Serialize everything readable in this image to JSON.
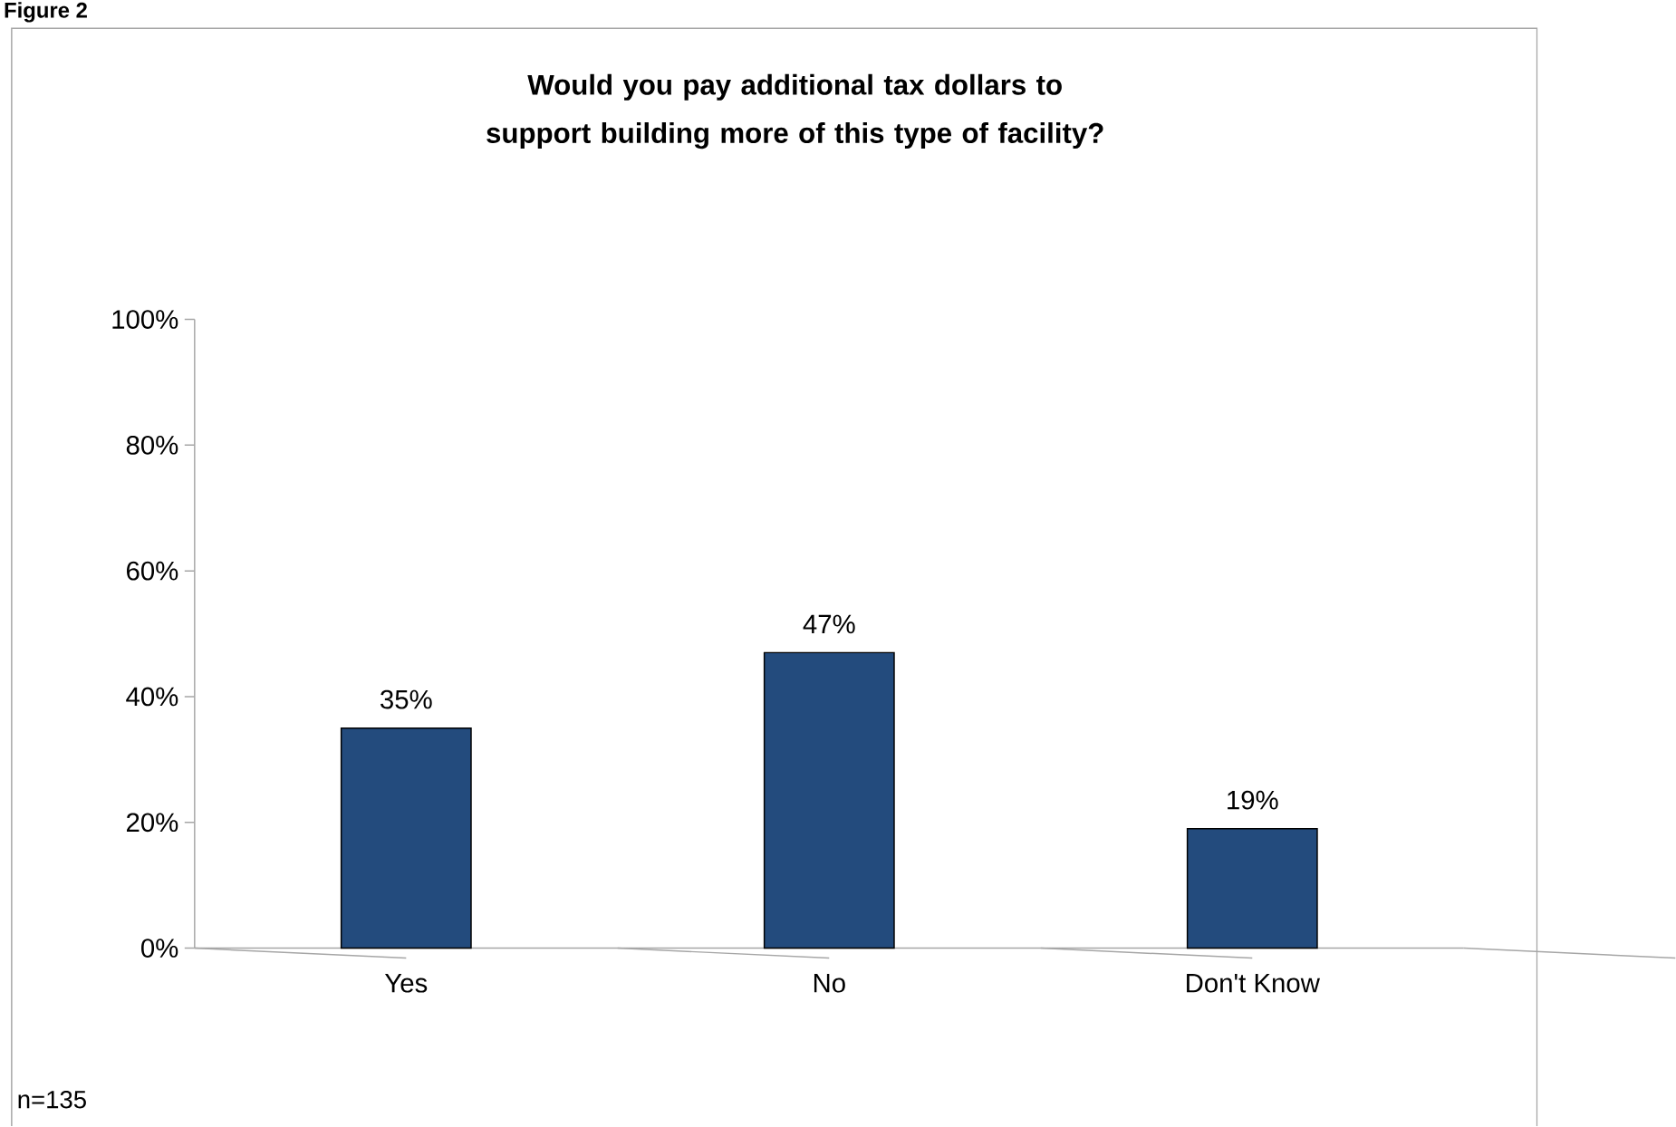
{
  "chart_data": {
    "type": "bar",
    "title": "Would you pay additional tax dollars to support building more of this type of facility?",
    "categories": [
      "Yes",
      "No",
      "Don't Know"
    ],
    "values": [
      35,
      47,
      19
    ],
    "value_labels": [
      "35%",
      "47%",
      "19%"
    ],
    "color": "#234b7d",
    "ylim": [
      0,
      100
    ],
    "yticks": [
      {
        "value": 0,
        "label": "0%"
      },
      {
        "value": 20,
        "label": "20%"
      },
      {
        "value": 40,
        "label": "40%"
      },
      {
        "value": 60,
        "label": "60%"
      },
      {
        "value": 80,
        "label": "80%"
      },
      {
        "value": 100,
        "label": "100%"
      }
    ],
    "annotations": [
      "Figure 2",
      "n=135"
    ]
  }
}
